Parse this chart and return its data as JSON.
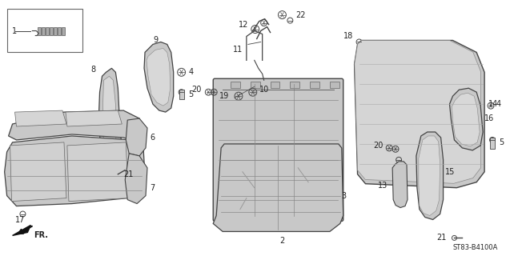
{
  "bg_color": "#ffffff",
  "fig_width": 6.37,
  "fig_height": 3.2,
  "dpi": 100,
  "line_color": "#444444",
  "light_gray": "#c8c8c8",
  "med_gray": "#b0b0b0",
  "diagram_ref": "ST83-B4100A"
}
